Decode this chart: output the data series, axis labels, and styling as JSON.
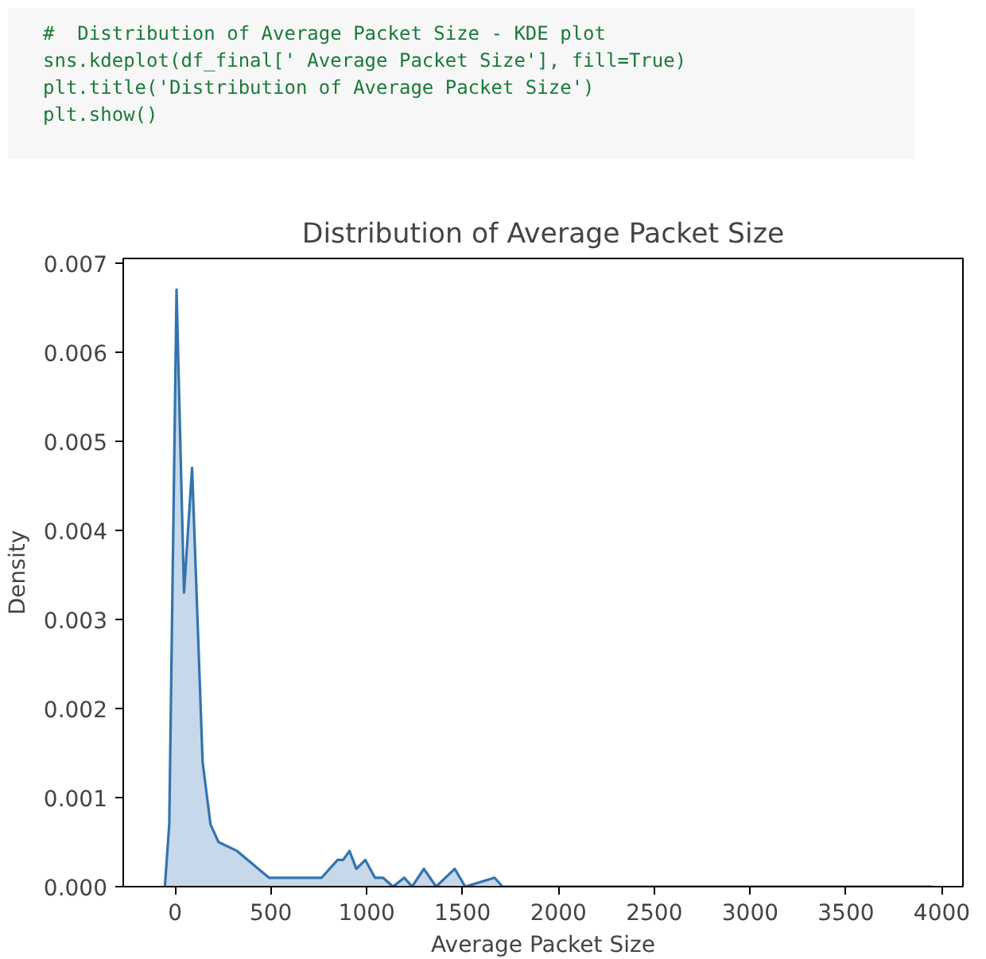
{
  "chart_data": {
    "type": "area",
    "title": "Distribution of Average Packet Size",
    "xlabel": "Average Packet Size",
    "ylabel": "Density",
    "annotations": [
      "#  Distribution of Average Packet Size - KDE plot",
      "sns.kdeplot(df_final[' Average Packet Size'], fill=True)",
      "plt.title('Distribution of Average Packet Size')",
      "plt.show()"
    ],
    "x": [
      -53,
      -30,
      8,
      47,
      89,
      144,
      185,
      227,
      324,
      434,
      490,
      573,
      656,
      765,
      848,
      877,
      910,
      946,
      993,
      1043,
      1085,
      1137,
      1196,
      1237,
      1298,
      1362,
      1459,
      1514,
      1667,
      1708,
      2500,
      3950
    ],
    "series": [
      {
        "color": "#3274b0",
        "values": [
          0,
          0.0007,
          0.0067,
          0.0033,
          0.0047,
          0.0014,
          0.0007,
          0.0005,
          0.0004,
          0.0002,
          0.0001,
          0.0001,
          0.0001,
          0.0001,
          0.0003,
          0.0003,
          0.0004,
          0.0002,
          0.0003,
          0.0001,
          0.0001,
          0,
          0.0001,
          0,
          0.0002,
          0,
          0.0002,
          0,
          0.0001,
          0,
          0,
          0
        ]
      }
    ],
    "xlim": [
      -270,
      4110
    ],
    "ylim": [
      0,
      0.00705
    ],
    "xticks": [
      0,
      500,
      1000,
      1500,
      2000,
      2500,
      3000,
      3500,
      4000
    ],
    "yticks": [
      {
        "value": 0,
        "label": "0.000"
      },
      {
        "value": 0.001,
        "label": "0.001"
      },
      {
        "value": 0.002,
        "label": "0.002"
      },
      {
        "value": 0.003,
        "label": "0.003"
      },
      {
        "value": 0.004,
        "label": "0.004"
      },
      {
        "value": 0.005,
        "label": "0.005"
      },
      {
        "value": 0.006,
        "label": "0.006"
      },
      {
        "value": 0.007,
        "label": "0.007"
      }
    ],
    "grid": false
  }
}
